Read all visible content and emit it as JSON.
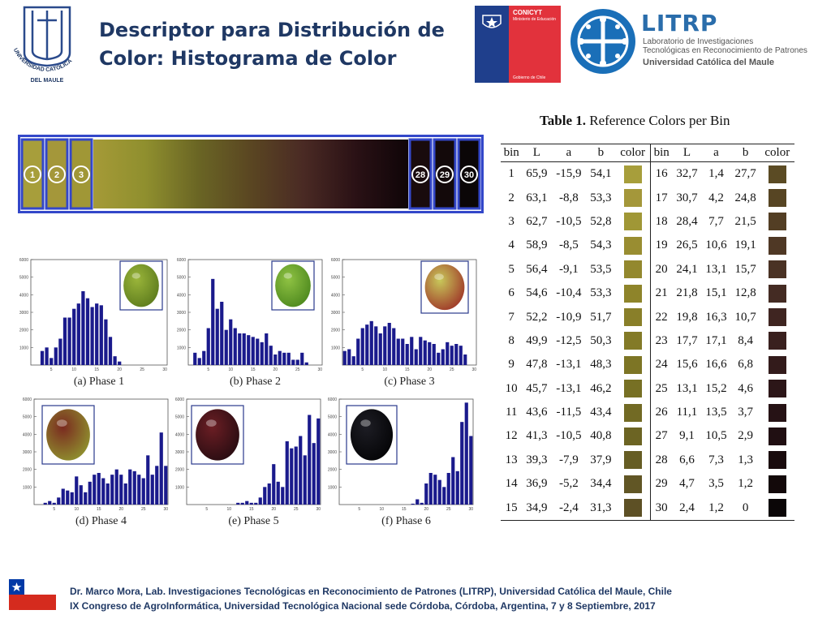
{
  "header": {
    "title_line1": "Descriptor para Distribución de",
    "title_line2": "Color: Histograma de Color",
    "university_logo_text_top": "UNIVERSIDAD CATÓLICA",
    "university_logo_text_bottom": "DEL MAULE",
    "conicyt_label": "CONICYT",
    "conicyt_ministry": "Ministerio de Educación",
    "conicyt_government": "Gobierno de Chile",
    "litrp_name": "LITRP",
    "litrp_line1": "Laboratorio de Investigaciones",
    "litrp_line2": "Tecnológicas en Reconocimiento de Patrones",
    "litrp_university": "Universidad Católica del Maule"
  },
  "color_bar": {
    "markers_left": [
      "1",
      "2",
      "3"
    ],
    "markers_right": [
      "28",
      "29",
      "30"
    ],
    "gradient_colors": [
      "#a59a37",
      "#8f8f2e",
      "#6a6524",
      "#5a4622",
      "#4a2a24",
      "#2a1115",
      "#0f0508"
    ]
  },
  "table": {
    "caption_bold": "Table 1.",
    "caption_rest": "Reference Colors per Bin",
    "headers": [
      "bin",
      "L",
      "a",
      "b",
      "color",
      "bin",
      "L",
      "a",
      "b",
      "color"
    ],
    "rows": [
      {
        "bin1": "1",
        "L1": "65,9",
        "a1": "-15,9",
        "b1": "54,1",
        "c1": "#a79e3b",
        "bin2": "16",
        "L2": "32,7",
        "a2": "1,4",
        "b2": "27,7",
        "c2": "#5b4b24"
      },
      {
        "bin1": "2",
        "L1": "63,1",
        "a1": "-8,8",
        "b1": "53,3",
        "c1": "#a4973a",
        "bin2": "17",
        "L2": "30,7",
        "a2": "4,2",
        "b2": "24,8",
        "c2": "#574523"
      },
      {
        "bin1": "3",
        "L1": "62,7",
        "a1": "-10,5",
        "b1": "52,8",
        "c1": "#a09736",
        "bin2": "18",
        "L2": "28,4",
        "a2": "7,7",
        "b2": "21,5",
        "c2": "#533e24"
      },
      {
        "bin1": "4",
        "L1": "58,9",
        "a1": "-8,5",
        "b1": "54,3",
        "c1": "#998d31",
        "bin2": "19",
        "L2": "26,5",
        "a2": "10,6",
        "b2": "19,1",
        "c2": "#4f3825"
      },
      {
        "bin1": "5",
        "L1": "56,4",
        "a1": "-9,1",
        "b1": "53,5",
        "c1": "#93882e",
        "bin2": "20",
        "L2": "24,1",
        "a2": "13,1",
        "b2": "15,7",
        "c2": "#4a3224"
      },
      {
        "bin1": "6",
        "L1": "54,6",
        "a1": "-10,4",
        "b1": "53,3",
        "c1": "#8e842a",
        "bin2": "21",
        "L2": "21,8",
        "a2": "15,1",
        "b2": "12,8",
        "c2": "#442b23"
      },
      {
        "bin1": "7",
        "L1": "52,2",
        "a1": "-10,9",
        "b1": "51,7",
        "c1": "#897f29",
        "bin2": "22",
        "L2": "19,8",
        "a2": "16,3",
        "b2": "10,7",
        "c2": "#3f2521"
      },
      {
        "bin1": "8",
        "L1": "49,9",
        "a1": "-12,5",
        "b1": "50,3",
        "c1": "#837a27",
        "bin2": "23",
        "L2": "17,7",
        "a2": "17,1",
        "b2": "8,4",
        "c2": "#39201e"
      },
      {
        "bin1": "9",
        "L1": "47,8",
        "a1": "-13,1",
        "b1": "48,3",
        "c1": "#7d7525",
        "bin2": "24",
        "L2": "15,6",
        "a2": "16,6",
        "b2": "6,8",
        "c2": "#331b1b"
      },
      {
        "bin1": "10",
        "L1": "45,7",
        "a1": "-13,1",
        "b1": "46,2",
        "c1": "#777024",
        "bin2": "25",
        "L2": "13,1",
        "a2": "15,2",
        "b2": "4,6",
        "c2": "#2c1618"
      },
      {
        "bin1": "11",
        "L1": "43,6",
        "a1": "-11,5",
        "b1": "43,4",
        "c1": "#726a24",
        "bin2": "26",
        "L2": "11,1",
        "a2": "13,5",
        "b2": "3,7",
        "c2": "#261215"
      },
      {
        "bin1": "12",
        "L1": "41,3",
        "a1": "-10,5",
        "b1": "40,8",
        "c1": "#6c6423",
        "bin2": "27",
        "L2": "9,1",
        "a2": "10,5",
        "b2": "2,9",
        "c2": "#200f12"
      },
      {
        "bin1": "13",
        "L1": "39,3",
        "a1": "-7,9",
        "b1": "37,9",
        "c1": "#665d24",
        "bin2": "28",
        "L2": "6,6",
        "a2": "7,3",
        "b2": "1,3",
        "c2": "#190b0d"
      },
      {
        "bin1": "14",
        "L1": "36,9",
        "a1": "-5,2",
        "b1": "34,4",
        "c1": "#615625",
        "bin2": "29",
        "L2": "4,7",
        "a2": "3,5",
        "b2": "1,2",
        "c2": "#13090a"
      },
      {
        "bin1": "15",
        "L1": "34,9",
        "a1": "-2,4",
        "b1": "31,3",
        "c1": "#5d5025",
        "bin2": "30",
        "L2": "2,4",
        "a2": "1,2",
        "b2": "0",
        "c2": "#0b0607"
      }
    ]
  },
  "chart_data": [
    {
      "type": "bar",
      "title": "(a) Phase 1",
      "ylim": [
        0,
        6000
      ],
      "y_ticks": [
        "1000",
        "2000",
        "3000",
        "4000",
        "5000",
        "6000"
      ],
      "x_ticks": [
        "5",
        "10",
        "15",
        "20",
        "25",
        "30"
      ],
      "values": [
        0,
        0,
        800,
        1000,
        400,
        1000,
        1500,
        2700,
        2700,
        3200,
        3500,
        4200,
        3800,
        3300,
        3500,
        3400,
        2600,
        1600,
        500,
        200,
        0,
        0,
        0,
        0,
        0,
        0,
        0,
        0,
        0,
        0
      ],
      "fruit_colors": [
        "#9ab53a",
        "#5f7d1e"
      ]
    },
    {
      "type": "bar",
      "title": "(b) Phase 2",
      "ylim": [
        0,
        6000
      ],
      "y_ticks": [
        "1000",
        "2000",
        "3000",
        "4000",
        "5000",
        "6000"
      ],
      "x_ticks": [
        "5",
        "10",
        "15",
        "20",
        "25",
        "30"
      ],
      "values": [
        0,
        700,
        400,
        800,
        2100,
        4900,
        3200,
        3600,
        2000,
        2600,
        2100,
        1800,
        1800,
        1700,
        1600,
        1500,
        1300,
        1800,
        1100,
        600,
        800,
        700,
        700,
        300,
        300,
        700,
        150,
        0,
        0,
        0
      ],
      "fruit_colors": [
        "#8fc243",
        "#4f8a1f"
      ]
    },
    {
      "type": "bar",
      "title": "(c) Phase 3",
      "ylim": [
        0,
        6000
      ],
      "y_ticks": [
        "1000",
        "2000",
        "3000",
        "4000",
        "5000",
        "6000"
      ],
      "x_ticks": [
        "5",
        "10",
        "15",
        "20",
        "25",
        "30"
      ],
      "values": [
        800,
        900,
        500,
        1500,
        2100,
        2300,
        2500,
        2200,
        1800,
        2200,
        2400,
        2100,
        1500,
        1500,
        1200,
        1600,
        900,
        1600,
        1400,
        1300,
        1200,
        700,
        900,
        1300,
        1100,
        1200,
        1100,
        600,
        0,
        0
      ],
      "fruit_colors": [
        "#c8c85a",
        "#a03b2a"
      ]
    },
    {
      "type": "bar",
      "title": "(d) Phase 4",
      "ylim": [
        0,
        6000
      ],
      "y_ticks": [
        "1000",
        "2000",
        "3000",
        "4000",
        "5000",
        "6000"
      ],
      "x_ticks": [
        "5",
        "10",
        "15",
        "20",
        "25",
        "30"
      ],
      "values": [
        0,
        0,
        100,
        200,
        100,
        400,
        900,
        800,
        700,
        1600,
        1100,
        700,
        1300,
        1700,
        1800,
        1500,
        1200,
        1700,
        2000,
        1700,
        1200,
        2000,
        1900,
        1700,
        1500,
        2800,
        1700,
        2200,
        4100,
        2200
      ],
      "fruit_colors": [
        "#7a2a20",
        "#8f8f2e"
      ]
    },
    {
      "type": "bar",
      "title": "(e) Phase 5",
      "ylim": [
        0,
        6000
      ],
      "y_ticks": [
        "1000",
        "2000",
        "3000",
        "4000",
        "5000",
        "6000"
      ],
      "x_ticks": [
        "5",
        "10",
        "15",
        "20",
        "25",
        "30"
      ],
      "values": [
        0,
        0,
        0,
        0,
        0,
        0,
        0,
        0,
        0,
        0,
        0,
        100,
        100,
        200,
        100,
        100,
        400,
        1000,
        1200,
        2300,
        1300,
        1000,
        3600,
        3200,
        3300,
        3900,
        2800,
        5100,
        3500,
        4900
      ],
      "fruit_colors": [
        "#6b1e24",
        "#2a0d12"
      ]
    },
    {
      "type": "bar",
      "title": "(f) Phase 6",
      "ylim": [
        0,
        6000
      ],
      "y_ticks": [
        "1000",
        "2000",
        "3000",
        "4000",
        "5000",
        "6000"
      ],
      "x_ticks": [
        "5",
        "10",
        "15",
        "20",
        "25",
        "30"
      ],
      "values": [
        0,
        0,
        0,
        0,
        0,
        0,
        0,
        0,
        0,
        0,
        0,
        0,
        0,
        0,
        0,
        0,
        50,
        300,
        100,
        1200,
        1800,
        1700,
        1400,
        1000,
        1800,
        2700,
        1900,
        4700,
        5800,
        3900
      ],
      "fruit_colors": [
        "#1d1d24",
        "#050507"
      ]
    }
  ],
  "footer": {
    "line1": "Dr. Marco Mora, Lab.  Investigaciones Tecnológicas en Reconocimiento de Patrones (LITRP), Universidad Católica del Maule, Chile",
    "line2": "IX Congreso de AgroInformática, Universidad Tecnológica Nacional sede Córdoba, Córdoba, Argentina, 7 y 8 Septiembre, 2017"
  }
}
